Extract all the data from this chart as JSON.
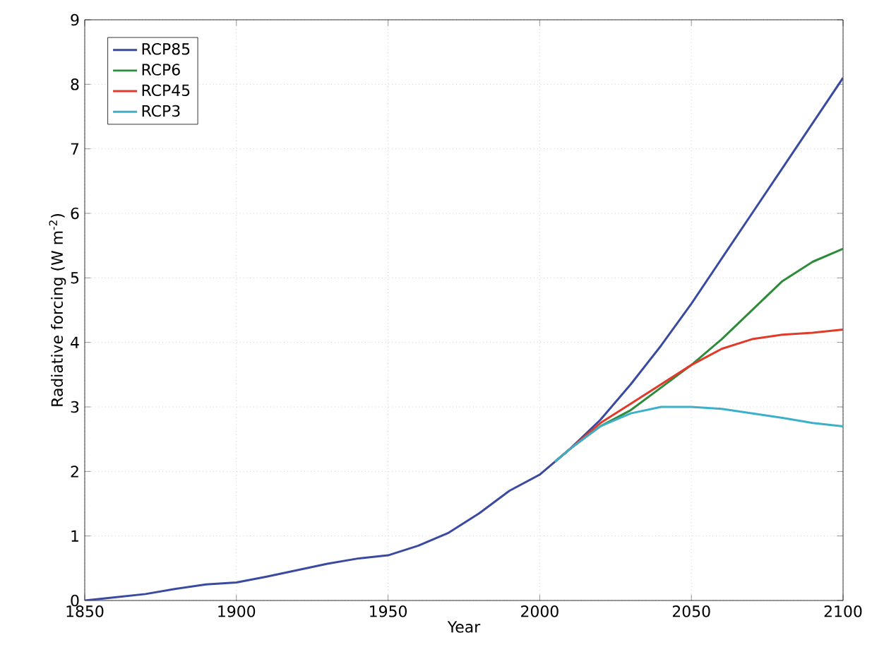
{
  "chart_data": {
    "type": "line",
    "xlabel": "Year",
    "ylabel": "Radiative forcing (W m$^{-2}$)",
    "xlim": [
      1850,
      2100
    ],
    "ylim": [
      0,
      9
    ],
    "xticks": [
      1850,
      1900,
      1950,
      2000,
      2050,
      2100
    ],
    "yticks": [
      0,
      1,
      2,
      3,
      4,
      5,
      6,
      7,
      8,
      9
    ],
    "grid": true,
    "legend": "top left",
    "marker": "none",
    "line_style": "solid",
    "series": [
      {
        "name": "RCP85",
        "color": "#3a4aa0",
        "x": [
          1850,
          1860,
          1870,
          1880,
          1890,
          1900,
          1910,
          1920,
          1930,
          1940,
          1950,
          1960,
          1970,
          1980,
          1990,
          2000,
          2005,
          2010,
          2020,
          2030,
          2040,
          2050,
          2060,
          2070,
          2080,
          2090,
          2100
        ],
        "values": [
          0.0,
          0.05,
          0.1,
          0.18,
          0.25,
          0.28,
          0.37,
          0.47,
          0.57,
          0.65,
          0.7,
          0.85,
          1.05,
          1.35,
          1.7,
          1.95,
          2.15,
          2.35,
          2.8,
          3.35,
          3.95,
          4.6,
          5.3,
          6.0,
          6.7,
          7.4,
          8.1
        ]
      },
      {
        "name": "RCP6",
        "color": "#2e8b3a",
        "x": [
          2005,
          2010,
          2020,
          2030,
          2040,
          2050,
          2060,
          2070,
          2080,
          2090,
          2100
        ],
        "values": [
          2.15,
          2.35,
          2.7,
          2.95,
          3.3,
          3.65,
          4.05,
          4.5,
          4.95,
          5.25,
          5.45
        ]
      },
      {
        "name": "RCP45",
        "color": "#e03a2a",
        "x": [
          2005,
          2010,
          2020,
          2030,
          2040,
          2050,
          2060,
          2070,
          2080,
          2090,
          2100
        ],
        "values": [
          2.15,
          2.35,
          2.75,
          3.05,
          3.35,
          3.65,
          3.9,
          4.05,
          4.12,
          4.15,
          4.2
        ]
      },
      {
        "name": "RCP3",
        "color": "#3cb0c8",
        "x": [
          2005,
          2010,
          2020,
          2030,
          2040,
          2050,
          2060,
          2070,
          2080,
          2090,
          2100
        ],
        "values": [
          2.15,
          2.35,
          2.7,
          2.9,
          3.0,
          3.0,
          2.97,
          2.9,
          2.83,
          2.75,
          2.7
        ]
      }
    ]
  }
}
